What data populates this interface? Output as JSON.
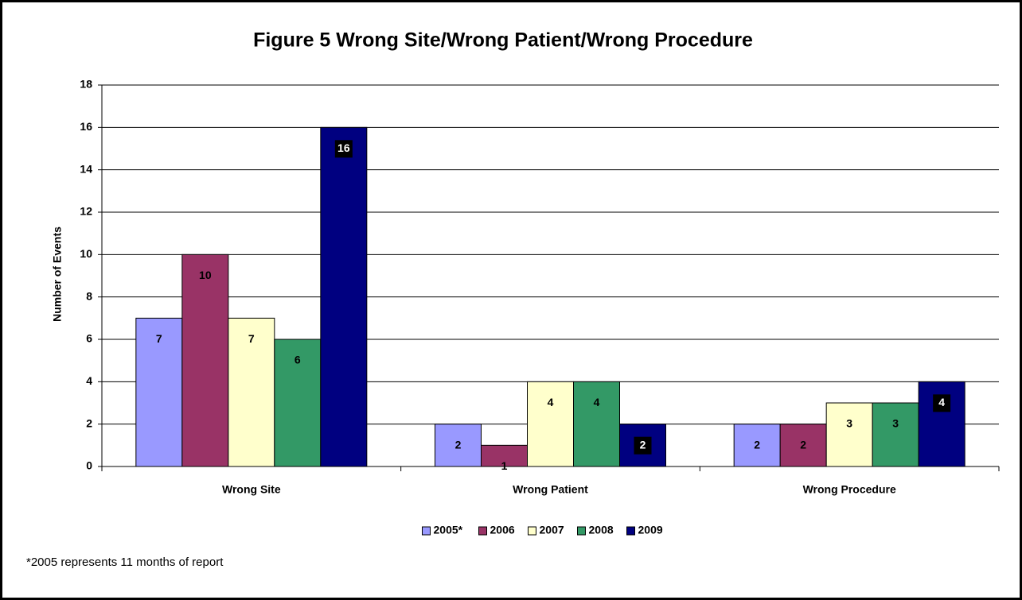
{
  "chart_data": {
    "type": "bar",
    "title": "Figure 5 Wrong Site/Wrong Patient/Wrong Procedure",
    "y_label": "Number of Events",
    "footnote": "*2005 represents 11 months of report",
    "categories": [
      "Wrong Site",
      "Wrong Patient",
      "Wrong Procedure"
    ],
    "series": [
      {
        "name": "2005*",
        "color": "#9999ff",
        "values": [
          7,
          2,
          2
        ]
      },
      {
        "name": "2006",
        "color": "#993366",
        "values": [
          10,
          1,
          2
        ]
      },
      {
        "name": "2007",
        "color": "#ffffcc",
        "values": [
          7,
          4,
          3
        ]
      },
      {
        "name": "2008",
        "color": "#339966",
        "values": [
          6,
          4,
          3
        ]
      },
      {
        "name": "2009",
        "color": "#000080",
        "values": [
          16,
          2,
          4
        ]
      }
    ],
    "ylim": [
      0,
      18
    ],
    "yticks": [
      0,
      2,
      4,
      6,
      8,
      10,
      12,
      14,
      16,
      18
    ],
    "grid": true,
    "legend": "bottom"
  }
}
